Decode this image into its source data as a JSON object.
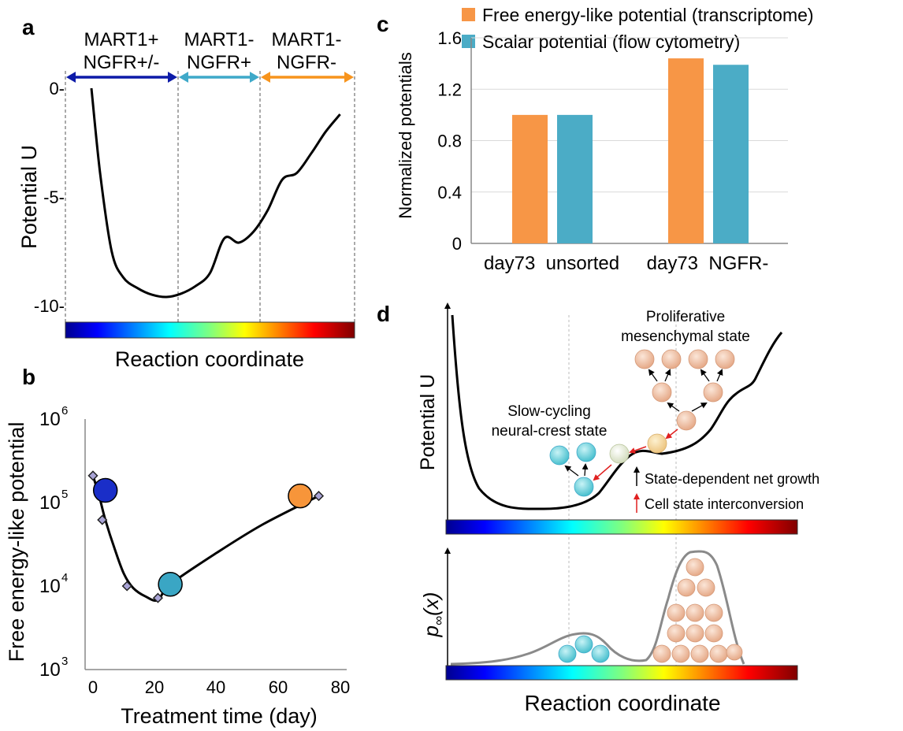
{
  "panel_labels": {
    "a": "a",
    "b": "b",
    "c": "c",
    "d": "d"
  },
  "colors": {
    "marker_blue": "#1a2ec8",
    "marker_teal": "#3aa6c4",
    "marker_orange": "#f7953a",
    "bar_orange": "#f79646",
    "bar_teal": "#4bacc6",
    "arrow_navy": "#0d1ba8",
    "arrow_teal": "#3fa9c9",
    "arrow_orange": "#f7941d",
    "cell_teal": "#52c8d4",
    "cell_peach": "#e8b89c",
    "cell_pale": "#e6ecd6",
    "cell_yellow": "#f1d9a0",
    "curve_grey": "#8a8a8a",
    "interconversion_red": "#e02020"
  },
  "chart_data": [
    {
      "panel": "a",
      "type": "line",
      "ylabel": "Potential U",
      "xlabel": "Reaction coordinate",
      "ylim": [
        -10.2,
        0.3
      ],
      "xlim": [
        0,
        1
      ],
      "y_ticks": [
        0,
        -5,
        -10
      ],
      "y_tick_labels": [
        "0-",
        "-5-",
        "-10-"
      ],
      "regions": [
        {
          "label_line1": "MART1+",
          "label_line2": "NGFR+/-",
          "from": 0.0,
          "to": 0.39,
          "color": "#0d1ba8"
        },
        {
          "label_line1": "MART1-",
          "label_line2": "NGFR+",
          "from": 0.39,
          "to": 0.675,
          "color": "#3fa9c9"
        },
        {
          "label_line1": "MART1-",
          "label_line2": "NGFR-",
          "from": 0.675,
          "to": 1.0,
          "color": "#f7941d"
        }
      ],
      "series": [
        {
          "x": [
            0.09,
            0.12,
            0.16,
            0.2,
            0.25,
            0.3,
            0.35,
            0.4,
            0.45,
            0.5,
            0.55,
            0.6,
            0.65,
            0.7,
            0.75,
            0.8,
            0.85,
            0.9,
            0.95
          ],
          "y": [
            0.0,
            -3.9,
            -7.5,
            -8.7,
            -9.2,
            -9.5,
            -9.6,
            -9.45,
            -9.1,
            -8.5,
            -6.9,
            -7.1,
            -6.6,
            -5.6,
            -4.2,
            -3.9,
            -3.0,
            -2.0,
            -1.2
          ]
        }
      ]
    },
    {
      "panel": "b",
      "type": "scatter",
      "xlabel": "Treatment time (day)",
      "ylabel": "Free energy-like potential",
      "xlim": [
        -4,
        81
      ],
      "ylim_log10": [
        3,
        6
      ],
      "y_scale": "log",
      "x_ticks": [
        0,
        20,
        40,
        60,
        80
      ],
      "x_tick_labels": [
        "0",
        "20",
        "40",
        "60",
        "80"
      ],
      "y_tick_labels": [
        {
          "base": "10",
          "exp": "3"
        },
        {
          "base": "10",
          "exp": "4"
        },
        {
          "base": "10",
          "exp": "5"
        },
        {
          "base": "10",
          "exp": "6"
        }
      ],
      "series": [
        {
          "x": [
            0,
            3,
            11,
            21,
            73
          ],
          "y": [
            210000,
            62000,
            10000,
            7200,
            120000
          ]
        },
        {
          "x": [
            4,
            25,
            67
          ],
          "y": [
            140000,
            10500,
            120000
          ]
        }
      ],
      "fit": {
        "x": [
          0,
          2,
          4,
          7,
          10,
          13,
          17,
          21,
          25,
          40,
          55,
          73
        ],
        "y": [
          210000,
          120000,
          62000,
          28000,
          14000,
          9500,
          7500,
          6800,
          10500,
          25000,
          55000,
          120000
        ]
      }
    },
    {
      "panel": "c",
      "type": "bar",
      "ylabel": "Normalized potentials",
      "ylim": [
        0,
        1.6
      ],
      "y_ticks": [
        0,
        0.4,
        0.8,
        1.2,
        1.6
      ],
      "y_tick_labels": [
        "0",
        "0.4",
        "0.8",
        "1.2",
        "1.6"
      ],
      "grid": "horizontal",
      "legend_position": "top",
      "categories": [
        "day73  unsorted",
        "day73  NGFR-"
      ],
      "series": [
        {
          "name": "Free energy-like potential (transcriptome)",
          "values": [
            1.0,
            1.44
          ]
        },
        {
          "name": "Scalar potential (flow cytometry)",
          "values": [
            1.0,
            1.39
          ]
        }
      ]
    }
  ],
  "panel_d": {
    "ylabel_top": "Potential U",
    "ylabel_bottom_main": "p",
    "ylabel_bottom_sub": "∞",
    "ylabel_bottom_arg": "(x)",
    "xlabel": "Reaction coordinate",
    "state_proliferative_line1": "Proliferative",
    "state_proliferative_line2": "mesenchymal state",
    "state_slow_line1": "Slow-cycling",
    "state_slow_line2": "neural-crest state",
    "legend_growth": "State-dependent net growth",
    "legend_interconversion": "Cell state interconversion"
  }
}
